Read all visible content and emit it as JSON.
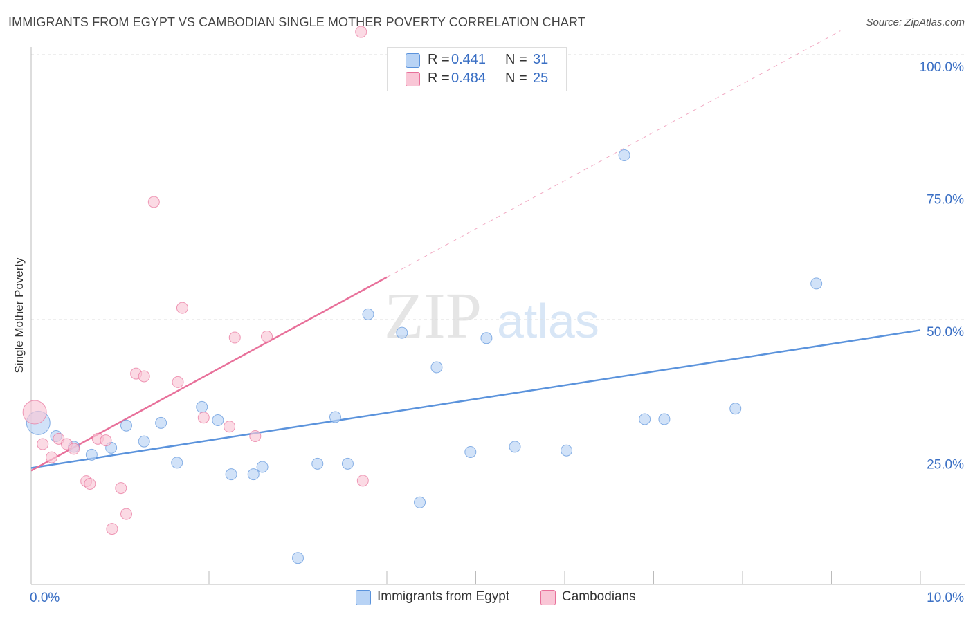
{
  "title": "IMMIGRANTS FROM EGYPT VS CAMBODIAN SINGLE MOTHER POVERTY CORRELATION CHART",
  "source": "Source: ZipAtlas.com",
  "watermark": {
    "zip": "ZIP",
    "atlas": "atlas"
  },
  "legend": {
    "rows": [
      {
        "r_label": "R =",
        "r_value": "0.441",
        "n_label": "N =",
        "n_value": "31",
        "color": "#b8d3f5"
      },
      {
        "r_label": "R =",
        "r_value": "0.484",
        "n_label": "N =",
        "n_value": "25",
        "color": "#f9c6d6"
      }
    ]
  },
  "bottom_legend": [
    {
      "label": "Immigrants from Egypt",
      "color": "#b8d3f5"
    },
    {
      "label": "Cambodians",
      "color": "#f9c6d6"
    }
  ],
  "chart_data": {
    "type": "scatter",
    "title": "IMMIGRANTS FROM EGYPT VS CAMBODIAN SINGLE MOTHER POVERTY CORRELATION CHART",
    "xlabel": "",
    "ylabel": "Single Mother Poverty",
    "xlim": [
      0,
      10
    ],
    "ylim": [
      0,
      102
    ],
    "x_tick_labels": [
      {
        "value": 0,
        "label": "0.0%"
      },
      {
        "value": 10,
        "label": "10.0%"
      }
    ],
    "y_tick_labels": [
      {
        "value": 25,
        "label": "25.0%"
      },
      {
        "value": 50,
        "label": "50.0%"
      },
      {
        "value": 75,
        "label": "75.0%"
      },
      {
        "value": 100,
        "label": "100.0%"
      }
    ],
    "grid": true,
    "legend_position": "top-center",
    "series": [
      {
        "name": "Immigrants from Egypt",
        "color": "#5b93dc",
        "fill": "#b8d3f5",
        "points": [
          {
            "x": 0.08,
            "y": 30.5,
            "big": true
          },
          {
            "x": 0.28,
            "y": 28.0
          },
          {
            "x": 0.48,
            "y": 26.0
          },
          {
            "x": 0.68,
            "y": 24.5
          },
          {
            "x": 0.9,
            "y": 25.8
          },
          {
            "x": 1.07,
            "y": 30.0
          },
          {
            "x": 1.27,
            "y": 27.0
          },
          {
            "x": 1.46,
            "y": 30.5
          },
          {
            "x": 1.64,
            "y": 23.0
          },
          {
            "x": 1.92,
            "y": 33.5
          },
          {
            "x": 2.1,
            "y": 31.0
          },
          {
            "x": 2.25,
            "y": 20.8
          },
          {
            "x": 2.5,
            "y": 20.8
          },
          {
            "x": 2.6,
            "y": 22.2
          },
          {
            "x": 3.0,
            "y": 5.0
          },
          {
            "x": 3.22,
            "y": 22.8
          },
          {
            "x": 3.42,
            "y": 31.6
          },
          {
            "x": 3.56,
            "y": 22.8
          },
          {
            "x": 3.79,
            "y": 51.0
          },
          {
            "x": 4.17,
            "y": 47.5
          },
          {
            "x": 4.37,
            "y": 15.5
          },
          {
            "x": 4.56,
            "y": 41.0
          },
          {
            "x": 4.94,
            "y": 25.0
          },
          {
            "x": 5.12,
            "y": 46.5
          },
          {
            "x": 5.44,
            "y": 26.0
          },
          {
            "x": 6.02,
            "y": 25.3
          },
          {
            "x": 6.67,
            "y": 81.0
          },
          {
            "x": 6.9,
            "y": 31.2
          },
          {
            "x": 7.12,
            "y": 31.2
          },
          {
            "x": 7.92,
            "y": 33.2
          },
          {
            "x": 8.83,
            "y": 56.8
          }
        ],
        "trend": {
          "x": [
            0.0,
            10.0
          ],
          "y": [
            22.0,
            48.0
          ]
        }
      },
      {
        "name": "Cambodians",
        "color": "#e8709a",
        "fill": "#f9c6d6",
        "points": [
          {
            "x": 0.04,
            "y": 32.5,
            "big": true
          },
          {
            "x": 0.13,
            "y": 26.5
          },
          {
            "x": 0.23,
            "y": 24.0
          },
          {
            "x": 0.31,
            "y": 27.5
          },
          {
            "x": 0.4,
            "y": 26.5
          },
          {
            "x": 0.48,
            "y": 25.6
          },
          {
            "x": 0.62,
            "y": 19.5
          },
          {
            "x": 0.66,
            "y": 19.0
          },
          {
            "x": 0.75,
            "y": 27.5
          },
          {
            "x": 0.84,
            "y": 27.2
          },
          {
            "x": 0.91,
            "y": 10.5
          },
          {
            "x": 1.01,
            "y": 18.2
          },
          {
            "x": 1.07,
            "y": 13.3
          },
          {
            "x": 1.18,
            "y": 39.8
          },
          {
            "x": 1.27,
            "y": 39.3
          },
          {
            "x": 1.38,
            "y": 72.2
          },
          {
            "x": 1.65,
            "y": 38.2
          },
          {
            "x": 1.7,
            "y": 52.2
          },
          {
            "x": 1.94,
            "y": 31.5
          },
          {
            "x": 2.23,
            "y": 29.8
          },
          {
            "x": 2.29,
            "y": 46.6
          },
          {
            "x": 2.52,
            "y": 28.0
          },
          {
            "x": 2.65,
            "y": 46.8
          },
          {
            "x": 3.73,
            "y": 19.6
          },
          {
            "x": 3.71,
            "y": 104.3
          }
        ],
        "trend": {
          "x": [
            0.0,
            4.0
          ],
          "y": [
            21.5,
            58.0
          ]
        },
        "trend_extension": {
          "x": [
            4.0,
            9.1
          ],
          "y": [
            58.0,
            104.5
          ]
        }
      }
    ]
  }
}
